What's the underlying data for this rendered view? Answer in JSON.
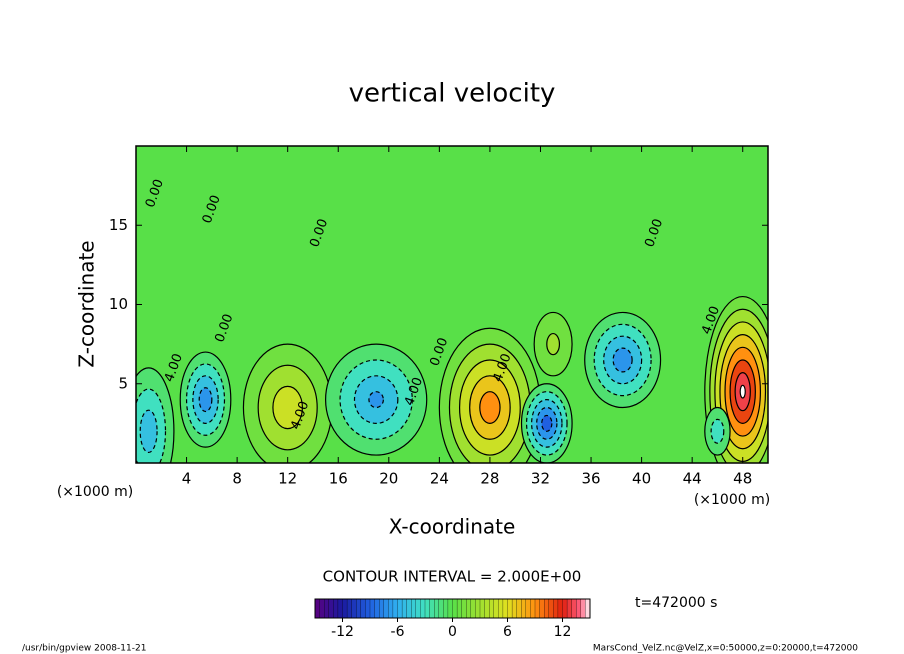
{
  "chart_data": {
    "type": "contour",
    "title": "vertical velocity",
    "x_label": "X-coordinate",
    "y_label": "Z-coordinate",
    "x_unit_label": "(×1000 m)",
    "xlim": [
      0,
      50
    ],
    "xticks": [
      4,
      8,
      12,
      16,
      20,
      24,
      28,
      32,
      36,
      40,
      44,
      48
    ],
    "ylim": [
      0,
      20
    ],
    "yticks": [
      5,
      10,
      15
    ],
    "contour_interval": 2,
    "contour_interval_label": "CONTOUR INTERVAL = 2.000E+00",
    "time_label": "t=472000 s",
    "features": [
      {
        "x": 48,
        "z": 4.5,
        "value": 15,
        "rx": 3,
        "rz": 6
      },
      {
        "x": 28,
        "z": 3.5,
        "value": 10,
        "rx": 4,
        "rz": 5
      },
      {
        "x": 12,
        "z": 3.5,
        "value": 6,
        "rx": 3.5,
        "rz": 4
      },
      {
        "x": 32.5,
        "z": 2.5,
        "value": -10,
        "rx": 2,
        "rz": 2.5
      },
      {
        "x": 5.5,
        "z": 4,
        "value": -8,
        "rx": 2,
        "rz": 3
      },
      {
        "x": 19,
        "z": 4,
        "value": -7,
        "rx": 4,
        "rz": 3.5
      },
      {
        "x": 38.5,
        "z": 6.5,
        "value": -8,
        "rx": 3,
        "rz": 3
      },
      {
        "x": 1,
        "z": 2,
        "value": -6,
        "rx": 2,
        "rz": 4
      },
      {
        "x": 46,
        "z": 2,
        "value": -4,
        "rx": 1,
        "rz": 1.5
      },
      {
        "x": 33,
        "z": 7.5,
        "value": 3,
        "rx": 1.5,
        "rz": 2
      }
    ],
    "contour_labels": [
      {
        "text": "4.00",
        "x": 13,
        "z": 3
      },
      {
        "text": "4.00",
        "x": 22,
        "z": 4.5
      },
      {
        "text": "4.00",
        "x": 29,
        "z": 6
      },
      {
        "text": "4.00",
        "x": 45.5,
        "z": 9
      },
      {
        "text": "4.00",
        "x": 3,
        "z": 6
      },
      {
        "text": "0.00",
        "x": 1.5,
        "z": 17
      },
      {
        "text": "0.00",
        "x": 6,
        "z": 16
      },
      {
        "text": "0.00",
        "x": 14.5,
        "z": 14.5
      },
      {
        "text": "0.00",
        "x": 7,
        "z": 8.5
      },
      {
        "text": "0.00",
        "x": 24,
        "z": 7
      },
      {
        "text": "0.00",
        "x": 41,
        "z": 14.5
      }
    ],
    "colorbar": {
      "lim": [
        -15,
        15
      ],
      "ticks": [
        -12,
        -6,
        0,
        6,
        12
      ]
    },
    "footer_left": "/usr/bin/gpview   2008-11-21",
    "footer_right": "MarsCond_VelZ.nc@VelZ,x=0:50000,z=0:20000,t=472000"
  }
}
